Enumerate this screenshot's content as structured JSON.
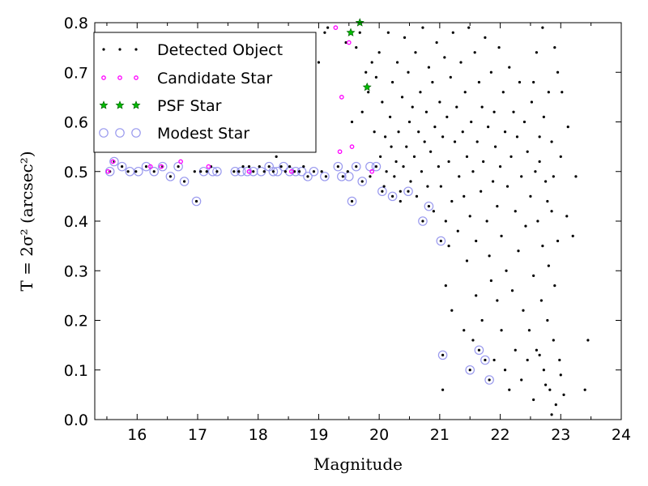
{
  "chart_data": {
    "type": "scatter",
    "xlabel": "Magnitude",
    "ylabel": "T = 2σ² (arcsec²)",
    "xlim": [
      15.3,
      24
    ],
    "ylim": [
      0.0,
      0.8
    ],
    "xticks": [
      "16",
      "17",
      "18",
      "19",
      "20",
      "21",
      "22",
      "23",
      "24"
    ],
    "yticks": [
      "0.0",
      "0.1",
      "0.2",
      "0.3",
      "0.4",
      "0.5",
      "0.6",
      "0.7",
      "0.8"
    ],
    "legend_position": "top-left",
    "grid": false,
    "series": [
      {
        "name": "Detected Object",
        "marker": "dot",
        "color": "#000000",
        "points": [
          [
            15.55,
            0.5
          ],
          [
            15.62,
            0.52
          ],
          [
            15.75,
            0.51
          ],
          [
            15.85,
            0.5
          ],
          [
            15.98,
            0.5
          ],
          [
            16.15,
            0.51
          ],
          [
            16.28,
            0.5
          ],
          [
            16.42,
            0.51
          ],
          [
            16.55,
            0.49
          ],
          [
            16.68,
            0.51
          ],
          [
            16.78,
            0.48
          ],
          [
            16.98,
            0.44
          ],
          [
            16.95,
            0.5
          ],
          [
            17.05,
            0.5
          ],
          [
            17.15,
            0.5
          ],
          [
            17.22,
            0.51
          ],
          [
            17.32,
            0.5
          ],
          [
            17.6,
            0.5
          ],
          [
            17.68,
            0.5
          ],
          [
            17.75,
            0.51
          ],
          [
            17.85,
            0.51
          ],
          [
            17.92,
            0.5
          ],
          [
            18.02,
            0.51
          ],
          [
            18.1,
            0.5
          ],
          [
            18.18,
            0.51
          ],
          [
            18.25,
            0.5
          ],
          [
            18.3,
            0.53
          ],
          [
            18.38,
            0.51
          ],
          [
            18.45,
            0.5
          ],
          [
            18.52,
            0.51
          ],
          [
            18.6,
            0.5
          ],
          [
            18.68,
            0.5
          ],
          [
            18.75,
            0.51
          ],
          [
            18.82,
            0.49
          ],
          [
            18.92,
            0.5
          ],
          [
            19.05,
            0.5
          ],
          [
            19.12,
            0.49
          ],
          [
            19.32,
            0.51
          ],
          [
            19.4,
            0.49
          ],
          [
            19.48,
            0.5
          ],
          [
            19.55,
            0.44
          ],
          [
            19.62,
            0.51
          ],
          [
            19.72,
            0.48
          ],
          [
            19.85,
            0.49
          ],
          [
            19.95,
            0.51
          ],
          [
            20.05,
            0.46
          ],
          [
            20.22,
            0.45
          ],
          [
            20.35,
            0.44
          ],
          [
            20.48,
            0.46
          ],
          [
            20.72,
            0.4
          ],
          [
            20.82,
            0.43
          ],
          [
            21.02,
            0.36
          ],
          [
            21.05,
            0.13
          ],
          [
            21.5,
            0.1
          ],
          [
            21.65,
            0.14
          ],
          [
            21.75,
            0.12
          ],
          [
            21.82,
            0.08
          ],
          [
            19.0,
            0.72
          ],
          [
            19.1,
            0.78
          ],
          [
            19.15,
            0.79
          ],
          [
            19.45,
            0.76
          ],
          [
            19.55,
            0.6
          ],
          [
            19.62,
            0.75
          ],
          [
            19.68,
            0.78
          ],
          [
            19.72,
            0.62
          ],
          [
            19.78,
            0.7
          ],
          [
            19.82,
            0.66
          ],
          [
            19.88,
            0.72
          ],
          [
            19.92,
            0.58
          ],
          [
            19.95,
            0.69
          ],
          [
            20.0,
            0.74
          ],
          [
            20.02,
            0.53
          ],
          [
            20.05,
            0.64
          ],
          [
            20.08,
            0.47
          ],
          [
            20.1,
            0.57
          ],
          [
            20.12,
            0.5
          ],
          [
            20.15,
            0.78
          ],
          [
            20.18,
            0.61
          ],
          [
            20.2,
            0.55
          ],
          [
            20.22,
            0.68
          ],
          [
            20.25,
            0.49
          ],
          [
            20.28,
            0.52
          ],
          [
            20.3,
            0.72
          ],
          [
            20.32,
            0.58
          ],
          [
            20.35,
            0.46
          ],
          [
            20.38,
            0.65
          ],
          [
            20.4,
            0.51
          ],
          [
            20.42,
            0.77
          ],
          [
            20.45,
            0.55
          ],
          [
            20.48,
            0.7
          ],
          [
            20.5,
            0.6
          ],
          [
            20.52,
            0.48
          ],
          [
            20.55,
            0.63
          ],
          [
            20.58,
            0.53
          ],
          [
            20.6,
            0.74
          ],
          [
            20.62,
            0.45
          ],
          [
            20.65,
            0.58
          ],
          [
            20.68,
            0.66
          ],
          [
            20.7,
            0.5
          ],
          [
            20.72,
            0.79
          ],
          [
            20.75,
            0.56
          ],
          [
            20.78,
            0.62
          ],
          [
            20.8,
            0.47
          ],
          [
            20.82,
            0.71
          ],
          [
            20.85,
            0.54
          ],
          [
            20.88,
            0.68
          ],
          [
            20.9,
            0.42
          ],
          [
            20.92,
            0.59
          ],
          [
            20.95,
            0.76
          ],
          [
            20.98,
            0.51
          ],
          [
            21.0,
            0.64
          ],
          [
            21.02,
            0.47
          ],
          [
            21.05,
            0.57
          ],
          [
            21.08,
            0.73
          ],
          [
            21.1,
            0.4
          ],
          [
            21.12,
            0.61
          ],
          [
            21.15,
            0.52
          ],
          [
            21.18,
            0.69
          ],
          [
            21.2,
            0.44
          ],
          [
            21.22,
            0.78
          ],
          [
            21.25,
            0.56
          ],
          [
            21.28,
            0.63
          ],
          [
            21.3,
            0.38
          ],
          [
            21.32,
            0.49
          ],
          [
            21.35,
            0.72
          ],
          [
            21.38,
            0.58
          ],
          [
            21.4,
            0.45
          ],
          [
            21.42,
            0.66
          ],
          [
            21.45,
            0.53
          ],
          [
            21.48,
            0.79
          ],
          [
            21.5,
            0.41
          ],
          [
            21.52,
            0.6
          ],
          [
            21.55,
            0.5
          ],
          [
            21.58,
            0.74
          ],
          [
            21.6,
            0.36
          ],
          [
            21.62,
            0.56
          ],
          [
            21.65,
            0.68
          ],
          [
            21.68,
            0.46
          ],
          [
            21.7,
            0.63
          ],
          [
            21.72,
            0.52
          ],
          [
            21.75,
            0.77
          ],
          [
            21.78,
            0.4
          ],
          [
            21.8,
            0.59
          ],
          [
            21.82,
            0.33
          ],
          [
            21.85,
            0.7
          ],
          [
            21.88,
            0.48
          ],
          [
            21.9,
            0.62
          ],
          [
            21.92,
            0.55
          ],
          [
            21.95,
            0.43
          ],
          [
            21.98,
            0.75
          ],
          [
            22.0,
            0.51
          ],
          [
            22.02,
            0.37
          ],
          [
            22.05,
            0.66
          ],
          [
            22.08,
            0.58
          ],
          [
            22.1,
            0.3
          ],
          [
            22.12,
            0.47
          ],
          [
            22.15,
            0.71
          ],
          [
            22.18,
            0.53
          ],
          [
            22.2,
            0.26
          ],
          [
            22.22,
            0.62
          ],
          [
            22.25,
            0.42
          ],
          [
            22.28,
            0.57
          ],
          [
            22.3,
            0.34
          ],
          [
            22.32,
            0.68
          ],
          [
            22.35,
            0.49
          ],
          [
            22.38,
            0.22
          ],
          [
            22.4,
            0.6
          ],
          [
            22.42,
            0.39
          ],
          [
            22.45,
            0.54
          ],
          [
            22.48,
            0.18
          ],
          [
            22.5,
            0.45
          ],
          [
            22.52,
            0.64
          ],
          [
            22.55,
            0.29
          ],
          [
            22.58,
            0.5
          ],
          [
            22.6,
            0.14
          ],
          [
            22.62,
            0.4
          ],
          [
            22.65,
            0.57
          ],
          [
            22.68,
            0.24
          ],
          [
            22.7,
            0.35
          ],
          [
            22.72,
            0.1
          ],
          [
            22.75,
            0.48
          ],
          [
            22.78,
            0.2
          ],
          [
            22.8,
            0.31
          ],
          [
            22.82,
            0.06
          ],
          [
            22.85,
            0.42
          ],
          [
            22.88,
            0.16
          ],
          [
            22.9,
            0.27
          ],
          [
            22.92,
            0.03
          ],
          [
            22.95,
            0.36
          ],
          [
            22.98,
            0.12
          ],
          [
            23.0,
            0.09
          ],
          [
            23.05,
            0.05
          ],
          [
            23.1,
            0.41
          ],
          [
            23.2,
            0.37
          ],
          [
            23.45,
            0.16
          ],
          [
            23.4,
            0.06
          ],
          [
            21.05,
            0.06
          ],
          [
            21.1,
            0.27
          ],
          [
            21.15,
            0.35
          ],
          [
            21.2,
            0.22
          ],
          [
            21.4,
            0.18
          ],
          [
            21.45,
            0.32
          ],
          [
            21.55,
            0.16
          ],
          [
            21.6,
            0.25
          ],
          [
            21.7,
            0.2
          ],
          [
            21.85,
            0.28
          ],
          [
            21.9,
            0.12
          ],
          [
            21.95,
            0.24
          ],
          [
            22.02,
            0.18
          ],
          [
            22.08,
            0.1
          ],
          [
            22.15,
            0.06
          ],
          [
            22.25,
            0.14
          ],
          [
            22.35,
            0.08
          ],
          [
            22.45,
            0.12
          ],
          [
            22.55,
            0.04
          ],
          [
            22.65,
            0.13
          ],
          [
            22.75,
            0.07
          ],
          [
            22.85,
            0.01
          ],
          [
            22.55,
            0.68
          ],
          [
            22.65,
            0.52
          ],
          [
            22.72,
            0.61
          ],
          [
            22.78,
            0.44
          ],
          [
            22.85,
            0.56
          ],
          [
            22.88,
            0.49
          ],
          [
            22.95,
            0.7
          ],
          [
            23.02,
            0.66
          ],
          [
            23.12,
            0.59
          ],
          [
            23.25,
            0.49
          ],
          [
            22.6,
            0.74
          ],
          [
            22.7,
            0.79
          ],
          [
            22.8,
            0.66
          ],
          [
            22.9,
            0.75
          ],
          [
            23.0,
            0.53
          ]
        ]
      },
      {
        "name": "Candidate Star",
        "marker": "small-circle",
        "color": "#ff00ff",
        "points": [
          [
            15.52,
            0.5
          ],
          [
            15.6,
            0.52
          ],
          [
            16.22,
            0.51
          ],
          [
            16.4,
            0.51
          ],
          [
            16.72,
            0.52
          ],
          [
            17.18,
            0.51
          ],
          [
            17.85,
            0.5
          ],
          [
            18.55,
            0.5
          ],
          [
            19.35,
            0.54
          ],
          [
            19.55,
            0.55
          ],
          [
            19.28,
            0.79
          ],
          [
            19.38,
            0.65
          ],
          [
            19.5,
            0.76
          ],
          [
            19.88,
            0.5
          ]
        ]
      },
      {
        "name": "PSF Star",
        "marker": "star",
        "color": "#00bb00",
        "points": [
          [
            19.53,
            0.78
          ],
          [
            19.68,
            0.8
          ],
          [
            19.8,
            0.67
          ]
        ]
      },
      {
        "name": "Modest Star",
        "marker": "open-circle",
        "color": "#9999ee",
        "points": [
          [
            15.55,
            0.5
          ],
          [
            15.62,
            0.52
          ],
          [
            15.75,
            0.51
          ],
          [
            15.88,
            0.5
          ],
          [
            16.02,
            0.5
          ],
          [
            16.15,
            0.51
          ],
          [
            16.28,
            0.5
          ],
          [
            16.42,
            0.51
          ],
          [
            16.55,
            0.49
          ],
          [
            16.68,
            0.51
          ],
          [
            16.78,
            0.48
          ],
          [
            16.98,
            0.44
          ],
          [
            17.1,
            0.5
          ],
          [
            17.25,
            0.5
          ],
          [
            17.32,
            0.5
          ],
          [
            17.62,
            0.5
          ],
          [
            17.72,
            0.5
          ],
          [
            17.82,
            0.5
          ],
          [
            17.92,
            0.5
          ],
          [
            18.05,
            0.5
          ],
          [
            18.18,
            0.51
          ],
          [
            18.25,
            0.5
          ],
          [
            18.32,
            0.5
          ],
          [
            18.42,
            0.51
          ],
          [
            18.52,
            0.5
          ],
          [
            18.62,
            0.5
          ],
          [
            18.72,
            0.5
          ],
          [
            18.82,
            0.49
          ],
          [
            18.92,
            0.5
          ],
          [
            19.1,
            0.49
          ],
          [
            19.32,
            0.51
          ],
          [
            19.38,
            0.49
          ],
          [
            19.5,
            0.49
          ],
          [
            19.55,
            0.44
          ],
          [
            19.62,
            0.51
          ],
          [
            19.72,
            0.48
          ],
          [
            19.85,
            0.51
          ],
          [
            19.95,
            0.51
          ],
          [
            20.05,
            0.46
          ],
          [
            20.22,
            0.45
          ],
          [
            20.48,
            0.46
          ],
          [
            20.72,
            0.4
          ],
          [
            20.82,
            0.43
          ],
          [
            21.02,
            0.36
          ],
          [
            21.05,
            0.13
          ],
          [
            21.5,
            0.1
          ],
          [
            21.65,
            0.14
          ],
          [
            21.75,
            0.12
          ],
          [
            21.82,
            0.08
          ]
        ]
      }
    ]
  }
}
